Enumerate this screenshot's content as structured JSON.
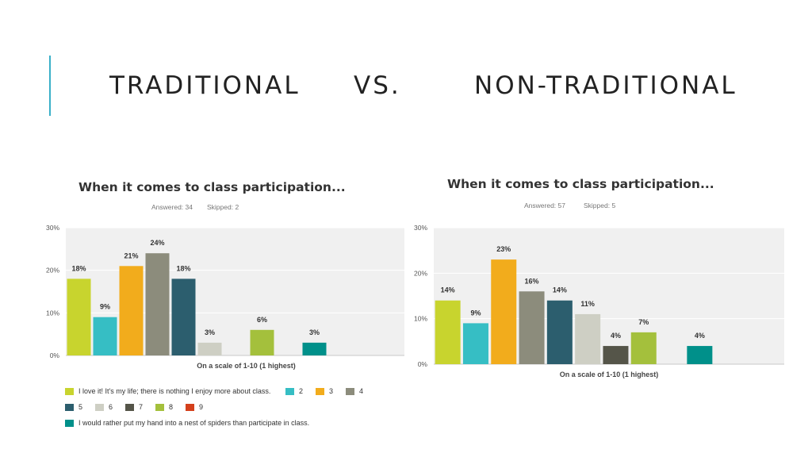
{
  "header": {
    "left_title": "TRADITIONAL",
    "vs_label": "VS.",
    "right_title": "NON-TRADITIONAL",
    "accent_color": "#3ab0c8"
  },
  "chart_data": [
    {
      "type": "bar",
      "title": "When it comes to class participation...",
      "answered_label": "Answered: 34",
      "skipped_label": "Skipped: 2",
      "xlabel": "On a scale of 1-10 (1 highest)",
      "ylabel": "",
      "ylim": [
        0,
        30
      ],
      "yticks": [
        0,
        10,
        20,
        30
      ],
      "ytick_labels": [
        "0%",
        "10%",
        "20%",
        "30%"
      ],
      "grid": true,
      "categories": [
        "1",
        "2",
        "3",
        "4",
        "5",
        "6",
        "7",
        "8",
        "9",
        "10"
      ],
      "values": [
        18,
        9,
        21,
        24,
        18,
        3,
        0,
        6,
        0,
        3
      ],
      "data_labels": [
        "18%",
        "9%",
        "21%",
        "24%",
        "18%",
        "3%",
        "",
        "6%",
        "",
        "3%"
      ]
    },
    {
      "type": "bar",
      "title": "When it comes to class participation...",
      "answered_label": "Answered: 57",
      "skipped_label": "Skipped: 5",
      "xlabel": "On a scale of 1-10 (1 highest)",
      "ylabel": "",
      "ylim": [
        0,
        30
      ],
      "yticks": [
        0,
        10,
        20,
        30
      ],
      "ytick_labels": [
        "0%",
        "10%",
        "20%",
        "30%"
      ],
      "grid": true,
      "categories": [
        "1",
        "2",
        "3",
        "4",
        "5",
        "6",
        "7",
        "8",
        "9",
        "10"
      ],
      "values": [
        14,
        9,
        23,
        16,
        14,
        11,
        4,
        7,
        0,
        4
      ],
      "data_labels": [
        "14%",
        "9%",
        "23%",
        "16%",
        "14%",
        "11%",
        "4%",
        "7%",
        "",
        "4%"
      ]
    }
  ],
  "colors": [
    "#c8d42e",
    "#36bec4",
    "#f2ac1c",
    "#8c8c7c",
    "#2c5e6e",
    "#cecfc4",
    "#555549",
    "#a4c03c",
    "#d4401c",
    "#00908a"
  ],
  "legend": {
    "placement": "bottom-left",
    "items": [
      {
        "label": "I love it!  It's my life; there is nothing I enjoy more about class."
      },
      {
        "label": "2"
      },
      {
        "label": "3"
      },
      {
        "label": "4"
      },
      {
        "label": "5"
      },
      {
        "label": "6"
      },
      {
        "label": "7"
      },
      {
        "label": "8"
      },
      {
        "label": "9"
      },
      {
        "label": "I would rather put my hand into a nest of spiders than participate in class."
      }
    ]
  }
}
